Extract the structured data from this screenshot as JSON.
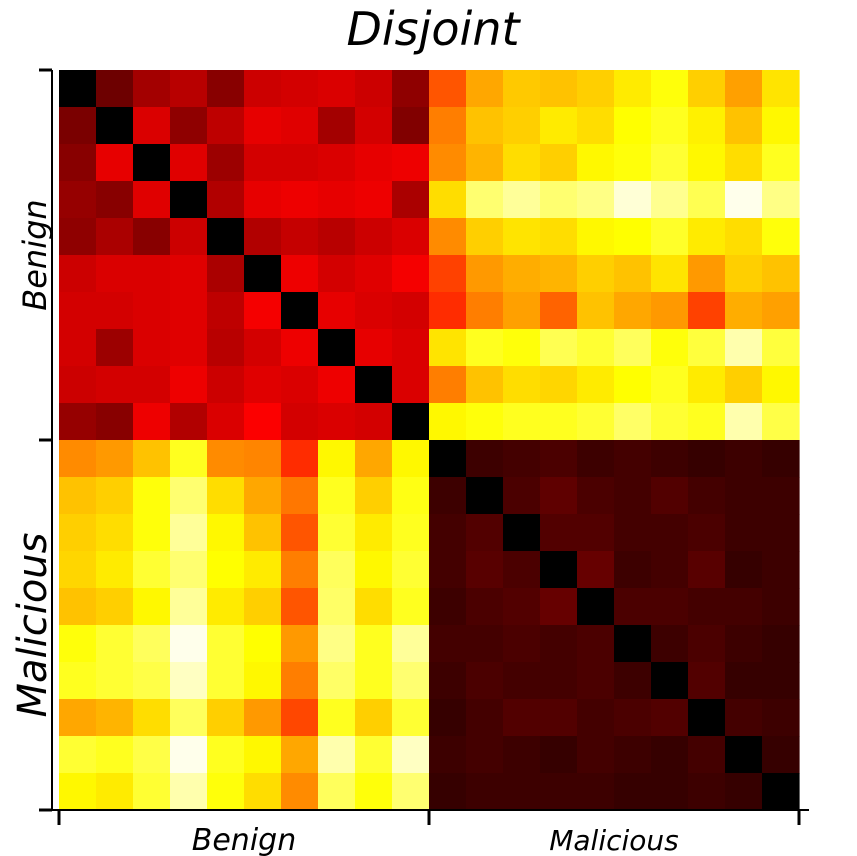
{
  "chart_data": {
    "type": "heatmap",
    "title": "Disjoint",
    "xlabel": "",
    "ylabel": "",
    "groups": [
      "Benign",
      "Malicious"
    ],
    "group_size": 10,
    "colormap": "hot",
    "value_range": [
      0,
      1
    ],
    "grid": false,
    "legend": "none",
    "colors": {
      "diagonal": "#000000",
      "low": "#000000",
      "mid": "#ff0000",
      "high": "#ffff00",
      "max": "#ffffff"
    },
    "values": [
      [
        0.0,
        0.16,
        0.24,
        0.27,
        0.2,
        0.3,
        0.31,
        0.32,
        0.3,
        0.21,
        0.5,
        0.62,
        0.67,
        0.66,
        0.68,
        0.72,
        0.76,
        0.68,
        0.61,
        0.71
      ],
      [
        0.18,
        0.0,
        0.32,
        0.21,
        0.28,
        0.34,
        0.33,
        0.24,
        0.31,
        0.19,
        0.56,
        0.66,
        0.68,
        0.72,
        0.7,
        0.75,
        0.78,
        0.73,
        0.66,
        0.74
      ],
      [
        0.2,
        0.34,
        0.0,
        0.33,
        0.23,
        0.31,
        0.31,
        0.32,
        0.34,
        0.35,
        0.58,
        0.64,
        0.7,
        0.68,
        0.74,
        0.76,
        0.8,
        0.74,
        0.7,
        0.78
      ],
      [
        0.22,
        0.2,
        0.33,
        0.0,
        0.26,
        0.34,
        0.35,
        0.34,
        0.35,
        0.25,
        0.7,
        0.86,
        0.9,
        0.86,
        0.88,
        0.96,
        0.89,
        0.83,
        0.98,
        0.88
      ],
      [
        0.21,
        0.25,
        0.2,
        0.3,
        0.0,
        0.26,
        0.29,
        0.27,
        0.3,
        0.32,
        0.58,
        0.68,
        0.71,
        0.7,
        0.74,
        0.75,
        0.79,
        0.72,
        0.7,
        0.76
      ],
      [
        0.3,
        0.32,
        0.32,
        0.33,
        0.25,
        0.0,
        0.35,
        0.31,
        0.33,
        0.36,
        0.47,
        0.6,
        0.63,
        0.64,
        0.68,
        0.66,
        0.71,
        0.6,
        0.68,
        0.66
      ],
      [
        0.31,
        0.31,
        0.32,
        0.33,
        0.28,
        0.36,
        0.0,
        0.34,
        0.32,
        0.31,
        0.44,
        0.56,
        0.61,
        0.52,
        0.66,
        0.62,
        0.6,
        0.47,
        0.63,
        0.61
      ],
      [
        0.31,
        0.23,
        0.32,
        0.33,
        0.27,
        0.31,
        0.35,
        0.0,
        0.34,
        0.32,
        0.71,
        0.78,
        0.76,
        0.83,
        0.8,
        0.84,
        0.76,
        0.81,
        0.92,
        0.81
      ],
      [
        0.3,
        0.31,
        0.31,
        0.35,
        0.3,
        0.33,
        0.32,
        0.35,
        0.0,
        0.32,
        0.56,
        0.66,
        0.7,
        0.69,
        0.72,
        0.75,
        0.78,
        0.72,
        0.68,
        0.74
      ],
      [
        0.22,
        0.2,
        0.35,
        0.26,
        0.32,
        0.37,
        0.31,
        0.32,
        0.31,
        0.0,
        0.74,
        0.76,
        0.78,
        0.78,
        0.8,
        0.85,
        0.8,
        0.78,
        0.92,
        0.82
      ],
      [
        0.58,
        0.6,
        0.66,
        0.78,
        0.58,
        0.57,
        0.44,
        0.74,
        0.62,
        0.74,
        0.0,
        0.09,
        0.1,
        0.11,
        0.09,
        0.1,
        0.09,
        0.08,
        0.09,
        0.08
      ],
      [
        0.66,
        0.68,
        0.76,
        0.86,
        0.7,
        0.62,
        0.55,
        0.78,
        0.68,
        0.77,
        0.09,
        0.0,
        0.11,
        0.14,
        0.11,
        0.1,
        0.12,
        0.1,
        0.09,
        0.09
      ],
      [
        0.68,
        0.7,
        0.76,
        0.9,
        0.74,
        0.66,
        0.5,
        0.8,
        0.72,
        0.78,
        0.1,
        0.12,
        0.0,
        0.12,
        0.12,
        0.1,
        0.1,
        0.11,
        0.09,
        0.09
      ],
      [
        0.69,
        0.72,
        0.8,
        0.86,
        0.75,
        0.72,
        0.56,
        0.84,
        0.74,
        0.8,
        0.1,
        0.13,
        0.11,
        0.0,
        0.15,
        0.09,
        0.1,
        0.13,
        0.08,
        0.09
      ],
      [
        0.66,
        0.68,
        0.74,
        0.9,
        0.72,
        0.68,
        0.5,
        0.85,
        0.7,
        0.78,
        0.09,
        0.11,
        0.12,
        0.15,
        0.0,
        0.11,
        0.11,
        0.1,
        0.1,
        0.09
      ],
      [
        0.76,
        0.8,
        0.84,
        0.98,
        0.8,
        0.75,
        0.6,
        0.88,
        0.78,
        0.9,
        0.1,
        0.1,
        0.11,
        0.1,
        0.11,
        0.0,
        0.09,
        0.11,
        0.09,
        0.08
      ],
      [
        0.78,
        0.8,
        0.82,
        0.94,
        0.8,
        0.74,
        0.56,
        0.85,
        0.78,
        0.86,
        0.09,
        0.11,
        0.1,
        0.1,
        0.11,
        0.09,
        0.0,
        0.12,
        0.08,
        0.08
      ],
      [
        0.62,
        0.64,
        0.7,
        0.84,
        0.68,
        0.6,
        0.48,
        0.78,
        0.68,
        0.8,
        0.08,
        0.1,
        0.12,
        0.12,
        0.1,
        0.11,
        0.12,
        0.0,
        0.1,
        0.09
      ],
      [
        0.8,
        0.78,
        0.82,
        0.98,
        0.78,
        0.74,
        0.62,
        0.92,
        0.8,
        0.94,
        0.09,
        0.1,
        0.09,
        0.08,
        0.1,
        0.09,
        0.08,
        0.1,
        0.0,
        0.08
      ],
      [
        0.74,
        0.72,
        0.8,
        0.92,
        0.76,
        0.7,
        0.58,
        0.84,
        0.76,
        0.86,
        0.08,
        0.09,
        0.09,
        0.09,
        0.09,
        0.08,
        0.08,
        0.09,
        0.08,
        0.0
      ]
    ]
  }
}
